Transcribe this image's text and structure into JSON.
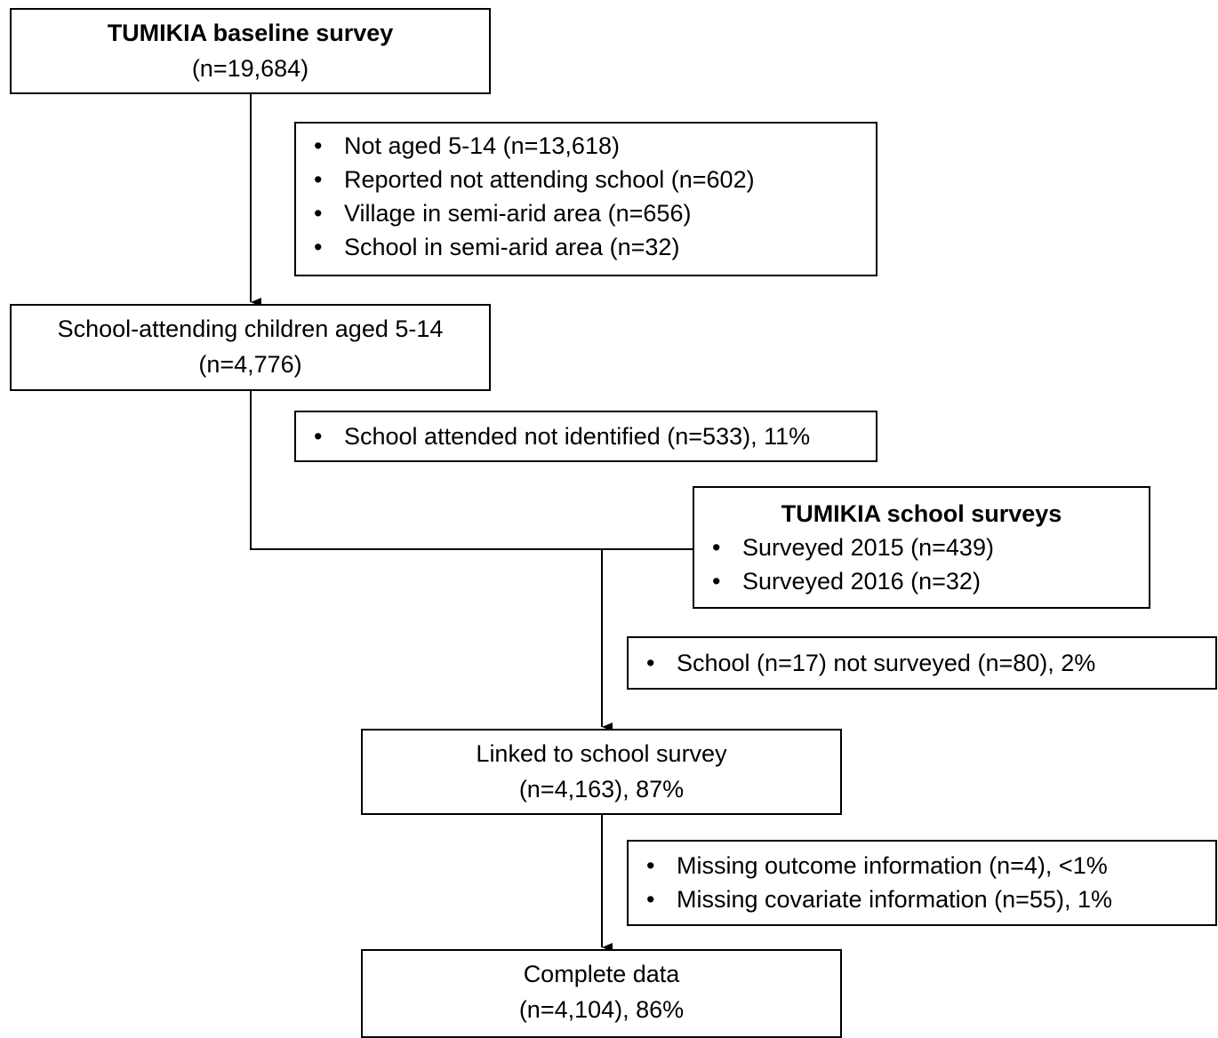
{
  "baseline": {
    "title": "TUMIKIA baseline survey",
    "count": "(n=19,684)"
  },
  "exclusion1": {
    "items": [
      "Not aged 5-14 (n=13,618)",
      "Reported not attending school (n=602)",
      "Village in semi-arid area (n=656)",
      "School in semi-arid area (n=32)"
    ]
  },
  "school_attending": {
    "title": "School-attending children aged 5-14",
    "count": "(n=4,776)"
  },
  "exclusion2": {
    "items": [
      "School attended not identified (n=533), 11%"
    ]
  },
  "school_surveys": {
    "title": "TUMIKIA school surveys",
    "items": [
      "Surveyed 2015 (n=439)",
      "Surveyed 2016 (n=32)"
    ]
  },
  "exclusion3": {
    "items": [
      "School (n=17) not surveyed (n=80), 2%"
    ]
  },
  "linked": {
    "title": "Linked to school survey",
    "count": "(n=4,163), 87%"
  },
  "exclusion4": {
    "items": [
      "Missing outcome information (n=4), <1%",
      "Missing covariate information (n=55), 1%"
    ]
  },
  "complete": {
    "title": "Complete data",
    "count": "(n=4,104), 86%"
  }
}
